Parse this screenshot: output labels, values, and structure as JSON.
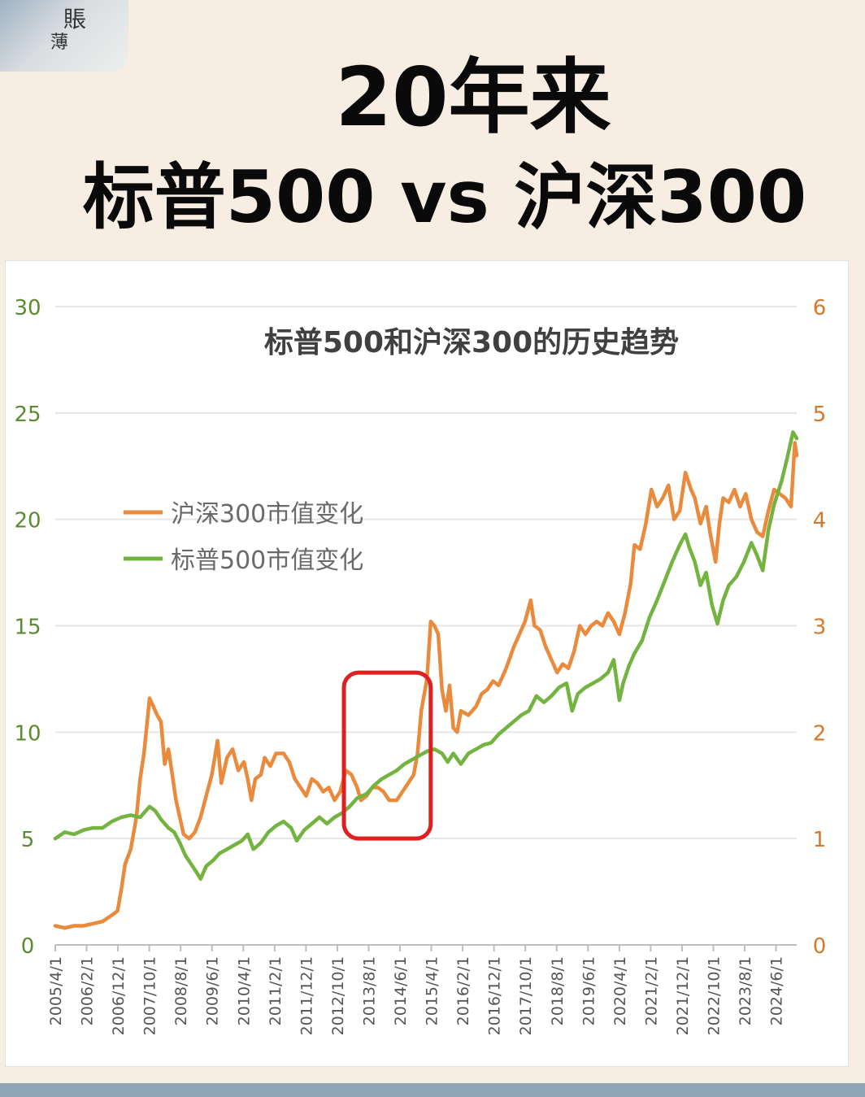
{
  "header": {
    "logo_text": [
      "賬",
      "薄"
    ],
    "title_line1": "20年来",
    "title_line2": "标普500 vs 沪深300"
  },
  "colors": {
    "csi300": "#e98a3c",
    "sp500": "#73b441",
    "left_axis": "#5c8b2f",
    "right_axis": "#d7782a",
    "highlight": "#e02020",
    "grid": "#e6e6e6"
  },
  "chart_data": {
    "type": "line",
    "title": "标普500和沪深300的历史趋势",
    "legend_position": "middle-left",
    "grid": true,
    "y_left": {
      "min": 0,
      "max": 30,
      "ticks": [
        "0",
        "5",
        "10",
        "15",
        "20",
        "25",
        "30"
      ]
    },
    "y_right": {
      "min": 0,
      "max": 6,
      "ticks": [
        "0",
        "1",
        "2",
        "3",
        "4",
        "5",
        "6"
      ]
    },
    "x_range": [
      2005.25,
      2024.9
    ],
    "x_tick_labels": [
      "2005/4/1",
      "2006/2/1",
      "2006/12/1",
      "2007/10/1",
      "2008/8/1",
      "2009/6/1",
      "2010/4/1",
      "2011/2/1",
      "2011/12/1",
      "2012/10/1",
      "2013/8/1",
      "2014/6/1",
      "2015/4/1",
      "2016/2/1",
      "2016/12/1",
      "2017/10/1",
      "2018/8/1",
      "2019/6/1",
      "2020/4/1",
      "2021/2/1",
      "2021/12/1",
      "2022/10/1",
      "2023/8/1",
      "2024/6/1"
    ],
    "series": [
      {
        "name": "沪深300市值变化",
        "axis": "left",
        "points": [
          [
            2005.25,
            0.9
          ],
          [
            2005.5,
            0.8
          ],
          [
            2005.75,
            0.9
          ],
          [
            2006.0,
            0.9
          ],
          [
            2006.25,
            1.0
          ],
          [
            2006.5,
            1.1
          ],
          [
            2006.75,
            1.4
          ],
          [
            2006.9,
            1.6
          ],
          [
            2007.0,
            2.6
          ],
          [
            2007.1,
            3.8
          ],
          [
            2007.25,
            4.5
          ],
          [
            2007.4,
            6.0
          ],
          [
            2007.5,
            7.8
          ],
          [
            2007.6,
            9.0
          ],
          [
            2007.75,
            11.6
          ],
          [
            2007.85,
            11.2
          ],
          [
            2007.95,
            10.8
          ],
          [
            2008.05,
            10.5
          ],
          [
            2008.15,
            8.5
          ],
          [
            2008.25,
            9.2
          ],
          [
            2008.35,
            8.0
          ],
          [
            2008.45,
            6.8
          ],
          [
            2008.55,
            6.0
          ],
          [
            2008.65,
            5.2
          ],
          [
            2008.8,
            5.0
          ],
          [
            2008.95,
            5.3
          ],
          [
            2009.1,
            6.0
          ],
          [
            2009.25,
            7.0
          ],
          [
            2009.4,
            8.0
          ],
          [
            2009.55,
            9.6
          ],
          [
            2009.65,
            7.6
          ],
          [
            2009.8,
            8.8
          ],
          [
            2009.95,
            9.2
          ],
          [
            2010.1,
            8.2
          ],
          [
            2010.25,
            8.6
          ],
          [
            2010.35,
            7.8
          ],
          [
            2010.45,
            6.8
          ],
          [
            2010.55,
            7.8
          ],
          [
            2010.7,
            8.0
          ],
          [
            2010.8,
            8.8
          ],
          [
            2010.95,
            8.4
          ],
          [
            2011.1,
            9.0
          ],
          [
            2011.3,
            9.0
          ],
          [
            2011.45,
            8.6
          ],
          [
            2011.6,
            7.8
          ],
          [
            2011.75,
            7.4
          ],
          [
            2011.9,
            7.0
          ],
          [
            2012.05,
            7.8
          ],
          [
            2012.2,
            7.6
          ],
          [
            2012.35,
            7.2
          ],
          [
            2012.5,
            7.4
          ],
          [
            2012.65,
            6.8
          ],
          [
            2012.8,
            7.2
          ],
          [
            2012.95,
            8.2
          ],
          [
            2013.1,
            8.0
          ],
          [
            2013.25,
            7.4
          ],
          [
            2013.35,
            6.8
          ],
          [
            2013.5,
            7.0
          ],
          [
            2013.65,
            7.4
          ],
          [
            2013.8,
            7.4
          ],
          [
            2013.95,
            7.2
          ],
          [
            2014.1,
            6.8
          ],
          [
            2014.3,
            6.8
          ],
          [
            2014.45,
            7.2
          ],
          [
            2014.6,
            7.6
          ],
          [
            2014.75,
            8.0
          ],
          [
            2014.85,
            9.0
          ],
          [
            2014.95,
            11.0
          ],
          [
            2015.1,
            12.5
          ],
          [
            2015.2,
            15.2
          ],
          [
            2015.3,
            15.0
          ],
          [
            2015.4,
            14.6
          ],
          [
            2015.5,
            12.0
          ],
          [
            2015.6,
            11.0
          ],
          [
            2015.7,
            12.2
          ],
          [
            2015.8,
            10.2
          ],
          [
            2015.9,
            10.0
          ],
          [
            2016.0,
            11.0
          ],
          [
            2016.2,
            10.8
          ],
          [
            2016.4,
            11.2
          ],
          [
            2016.55,
            11.8
          ],
          [
            2016.7,
            12.0
          ],
          [
            2016.85,
            12.4
          ],
          [
            2017.0,
            12.2
          ],
          [
            2017.2,
            13.0
          ],
          [
            2017.4,
            14.0
          ],
          [
            2017.55,
            14.6
          ],
          [
            2017.7,
            15.2
          ],
          [
            2017.85,
            16.2
          ],
          [
            2017.95,
            15.0
          ],
          [
            2018.1,
            14.8
          ],
          [
            2018.25,
            14.0
          ],
          [
            2018.4,
            13.4
          ],
          [
            2018.55,
            12.8
          ],
          [
            2018.7,
            13.2
          ],
          [
            2018.85,
            13.0
          ],
          [
            2019.0,
            13.8
          ],
          [
            2019.15,
            15.0
          ],
          [
            2019.3,
            14.6
          ],
          [
            2019.45,
            15.0
          ],
          [
            2019.6,
            15.2
          ],
          [
            2019.75,
            15.0
          ],
          [
            2019.9,
            15.6
          ],
          [
            2020.05,
            15.2
          ],
          [
            2020.2,
            14.6
          ],
          [
            2020.35,
            15.6
          ],
          [
            2020.5,
            17.0
          ],
          [
            2020.6,
            18.8
          ],
          [
            2020.75,
            18.6
          ],
          [
            2020.9,
            19.8
          ],
          [
            2021.05,
            21.4
          ],
          [
            2021.2,
            20.6
          ],
          [
            2021.35,
            21.0
          ],
          [
            2021.5,
            21.6
          ],
          [
            2021.65,
            20.0
          ],
          [
            2021.8,
            20.4
          ],
          [
            2021.95,
            22.2
          ],
          [
            2022.1,
            21.4
          ],
          [
            2022.2,
            21.0
          ],
          [
            2022.35,
            19.8
          ],
          [
            2022.5,
            20.6
          ],
          [
            2022.6,
            19.4
          ],
          [
            2022.75,
            18.0
          ],
          [
            2022.85,
            19.8
          ],
          [
            2022.95,
            21.0
          ],
          [
            2023.1,
            20.8
          ],
          [
            2023.25,
            21.4
          ],
          [
            2023.4,
            20.6
          ],
          [
            2023.55,
            21.2
          ],
          [
            2023.7,
            20.0
          ],
          [
            2023.85,
            19.4
          ],
          [
            2024.0,
            19.2
          ],
          [
            2024.15,
            20.4
          ],
          [
            2024.3,
            21.4
          ],
          [
            2024.45,
            21.2
          ],
          [
            2024.6,
            21.0
          ],
          [
            2024.75,
            20.6
          ],
          [
            2024.85,
            23.6
          ],
          [
            2024.9,
            23.0
          ]
        ]
      },
      {
        "name": "标普500市值变化",
        "axis": "right",
        "points": [
          [
            2005.25,
            1.0
          ],
          [
            2005.5,
            1.06
          ],
          [
            2005.75,
            1.04
          ],
          [
            2006.0,
            1.08
          ],
          [
            2006.25,
            1.1
          ],
          [
            2006.5,
            1.1
          ],
          [
            2006.75,
            1.16
          ],
          [
            2007.0,
            1.2
          ],
          [
            2007.25,
            1.22
          ],
          [
            2007.5,
            1.2
          ],
          [
            2007.75,
            1.3
          ],
          [
            2007.9,
            1.26
          ],
          [
            2008.05,
            1.18
          ],
          [
            2008.25,
            1.1
          ],
          [
            2008.4,
            1.06
          ],
          [
            2008.55,
            0.96
          ],
          [
            2008.7,
            0.84
          ],
          [
            2008.85,
            0.76
          ],
          [
            2009.0,
            0.68
          ],
          [
            2009.1,
            0.62
          ],
          [
            2009.25,
            0.74
          ],
          [
            2009.45,
            0.8
          ],
          [
            2009.6,
            0.86
          ],
          [
            2009.8,
            0.9
          ],
          [
            2010.0,
            0.94
          ],
          [
            2010.2,
            0.98
          ],
          [
            2010.35,
            1.04
          ],
          [
            2010.5,
            0.9
          ],
          [
            2010.7,
            0.96
          ],
          [
            2010.9,
            1.06
          ],
          [
            2011.1,
            1.12
          ],
          [
            2011.3,
            1.16
          ],
          [
            2011.5,
            1.1
          ],
          [
            2011.65,
            0.98
          ],
          [
            2011.85,
            1.08
          ],
          [
            2012.05,
            1.14
          ],
          [
            2012.25,
            1.2
          ],
          [
            2012.45,
            1.14
          ],
          [
            2012.65,
            1.2
          ],
          [
            2012.85,
            1.24
          ],
          [
            2013.05,
            1.3
          ],
          [
            2013.25,
            1.38
          ],
          [
            2013.5,
            1.42
          ],
          [
            2013.7,
            1.5
          ],
          [
            2013.9,
            1.56
          ],
          [
            2014.1,
            1.6
          ],
          [
            2014.3,
            1.64
          ],
          [
            2014.5,
            1.7
          ],
          [
            2014.7,
            1.74
          ],
          [
            2014.9,
            1.78
          ],
          [
            2015.1,
            1.82
          ],
          [
            2015.3,
            1.84
          ],
          [
            2015.5,
            1.8
          ],
          [
            2015.65,
            1.72
          ],
          [
            2015.8,
            1.8
          ],
          [
            2016.0,
            1.7
          ],
          [
            2016.2,
            1.8
          ],
          [
            2016.4,
            1.84
          ],
          [
            2016.6,
            1.88
          ],
          [
            2016.8,
            1.9
          ],
          [
            2017.0,
            1.98
          ],
          [
            2017.2,
            2.04
          ],
          [
            2017.4,
            2.1
          ],
          [
            2017.6,
            2.16
          ],
          [
            2017.8,
            2.2
          ],
          [
            2018.0,
            2.34
          ],
          [
            2018.2,
            2.28
          ],
          [
            2018.4,
            2.34
          ],
          [
            2018.6,
            2.42
          ],
          [
            2018.8,
            2.46
          ],
          [
            2018.95,
            2.2
          ],
          [
            2019.1,
            2.36
          ],
          [
            2019.3,
            2.42
          ],
          [
            2019.5,
            2.46
          ],
          [
            2019.7,
            2.5
          ],
          [
            2019.9,
            2.56
          ],
          [
            2020.05,
            2.68
          ],
          [
            2020.2,
            2.3
          ],
          [
            2020.3,
            2.46
          ],
          [
            2020.45,
            2.62
          ],
          [
            2020.6,
            2.74
          ],
          [
            2020.8,
            2.86
          ],
          [
            2021.0,
            3.08
          ],
          [
            2021.2,
            3.24
          ],
          [
            2021.4,
            3.42
          ],
          [
            2021.6,
            3.6
          ],
          [
            2021.8,
            3.76
          ],
          [
            2021.95,
            3.86
          ],
          [
            2022.05,
            3.74
          ],
          [
            2022.2,
            3.6
          ],
          [
            2022.35,
            3.38
          ],
          [
            2022.5,
            3.5
          ],
          [
            2022.65,
            3.2
          ],
          [
            2022.8,
            3.02
          ],
          [
            2022.95,
            3.24
          ],
          [
            2023.1,
            3.38
          ],
          [
            2023.3,
            3.46
          ],
          [
            2023.5,
            3.6
          ],
          [
            2023.7,
            3.78
          ],
          [
            2023.85,
            3.66
          ],
          [
            2024.0,
            3.52
          ],
          [
            2024.15,
            3.9
          ],
          [
            2024.3,
            4.14
          ],
          [
            2024.5,
            4.36
          ],
          [
            2024.65,
            4.58
          ],
          [
            2024.8,
            4.82
          ],
          [
            2024.9,
            4.76
          ]
        ]
      }
    ],
    "highlight_box": {
      "x": [
        2012.9,
        2015.2
      ],
      "y_left": [
        5.0,
        12.8
      ]
    }
  }
}
